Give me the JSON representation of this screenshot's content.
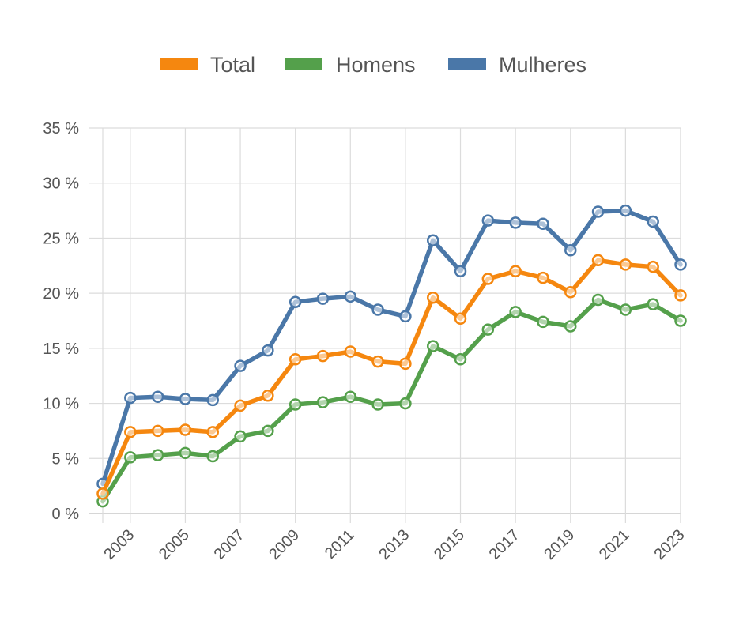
{
  "chart_data": {
    "type": "line",
    "title": "",
    "xlabel": "",
    "ylabel": "",
    "ylim": [
      0,
      35
    ],
    "ytick_values": [
      0,
      5,
      10,
      15,
      20,
      25,
      30,
      35
    ],
    "ytick_labels": [
      "0 %",
      "5 %",
      "10 %",
      "15 %",
      "20 %",
      "25 %",
      "30 %",
      "35 %"
    ],
    "x": [
      2002,
      2003,
      2004,
      2005,
      2006,
      2007,
      2008,
      2009,
      2010,
      2011,
      2012,
      2013,
      2014,
      2015,
      2016,
      2017,
      2018,
      2019,
      2020,
      2021,
      2022,
      2023
    ],
    "xtick_labels": [
      "2003",
      "2005",
      "2007",
      "2009",
      "2011",
      "2013",
      "2015",
      "2017",
      "2019",
      "2021",
      "2023"
    ],
    "legend_position": "top",
    "grid": true,
    "series": [
      {
        "name": "Total",
        "color": "#f5870f",
        "values": [
          1.8,
          7.4,
          7.5,
          7.6,
          7.4,
          9.8,
          10.7,
          14.0,
          14.3,
          14.7,
          13.8,
          13.6,
          19.6,
          17.7,
          21.3,
          22.0,
          21.4,
          20.1,
          23.0,
          22.6,
          22.4,
          19.8
        ]
      },
      {
        "name": "Homens",
        "color": "#54a04b",
        "values": [
          1.1,
          5.1,
          5.3,
          5.5,
          5.2,
          7.0,
          7.5,
          9.9,
          10.1,
          10.6,
          9.9,
          10.0,
          15.2,
          14.0,
          16.7,
          18.3,
          17.4,
          17.0,
          19.4,
          18.5,
          19.0,
          17.5
        ]
      },
      {
        "name": "Mulheres",
        "color": "#4a77a8",
        "values": [
          2.7,
          10.5,
          10.6,
          10.4,
          10.3,
          13.4,
          14.8,
          19.2,
          19.5,
          19.7,
          18.5,
          17.9,
          24.8,
          22.0,
          26.6,
          26.4,
          26.3,
          23.9,
          27.4,
          27.5,
          26.5,
          22.6
        ]
      }
    ]
  }
}
